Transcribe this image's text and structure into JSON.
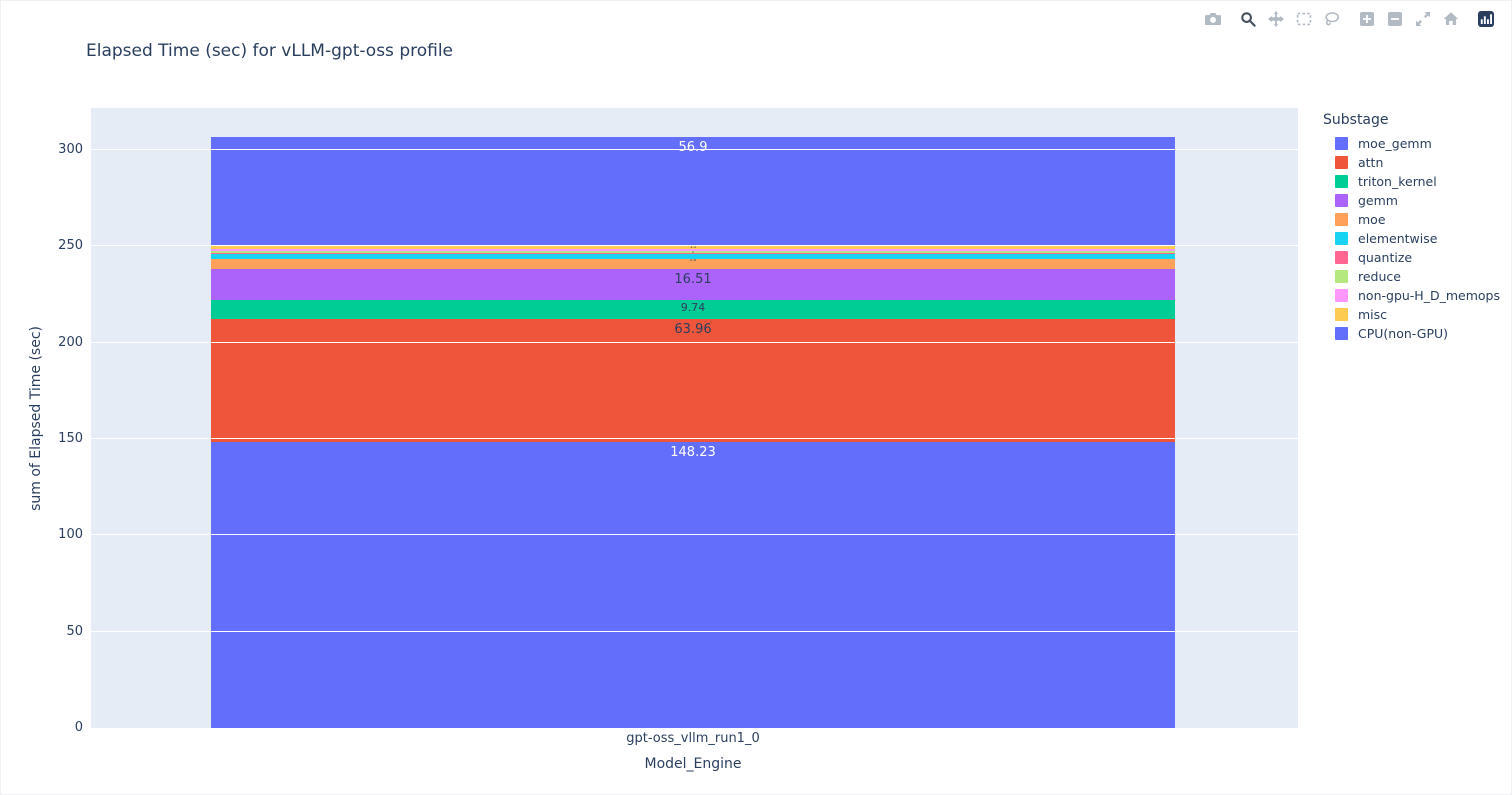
{
  "chart_data": {
    "type": "bar",
    "stacked": true,
    "title": "Elapsed Time (sec) for vLLM-gpt-oss profile",
    "xlabel": "Model_Engine",
    "ylabel": "sum of Elapsed Time (sec)",
    "legend_title": "Substage",
    "legend_position": "right",
    "grid": true,
    "categories": [
      "gpt-oss_vllm_run1_0"
    ],
    "yticks": [
      0,
      50,
      100,
      150,
      200,
      250,
      300
    ],
    "y_domain_max": 321.8,
    "plot_bg": "#e5ecf6",
    "text_color": "#2a3f5f",
    "series": [
      {
        "name": "moe_gemm",
        "color": "#636efa",
        "value": 148.23,
        "label": "148.23",
        "label_color": "#ffffff",
        "label_style": "big"
      },
      {
        "name": "attn",
        "color": "#ef553b",
        "value": 63.96,
        "label": "63.96",
        "label_color": "#2a3f5f",
        "label_style": "big"
      },
      {
        "name": "triton_kernel",
        "color": "#00cc96",
        "value": 9.74,
        "label": "9.74",
        "label_color": "#2a3f5f",
        "label_style": "small"
      },
      {
        "name": "gemm",
        "color": "#ab63fa",
        "value": 16.51,
        "label": "16.51",
        "label_color": "#2a3f5f",
        "label_style": "big"
      },
      {
        "name": "moe",
        "color": "#ffa15a",
        "value": 4.8,
        "label": "4.8",
        "label_color": "#2a3f5f",
        "label_style": "tiny"
      },
      {
        "name": "elementwise",
        "color": "#19d3f3",
        "value": 2.8,
        "label": "",
        "label_color": "#2a3f5f",
        "label_style": "tiny"
      },
      {
        "name": "quantize",
        "color": "#ff6692",
        "value": 0.4,
        "label": "",
        "label_color": "#2a3f5f",
        "label_style": "tiny"
      },
      {
        "name": "reduce",
        "color": "#b6e880",
        "value": 1.0,
        "label": "1",
        "label_color": "#2a3f5f",
        "label_style": "tiny"
      },
      {
        "name": "non-gpu-H_D_memops",
        "color": "#ff97ff",
        "value": 1.0,
        "label": "",
        "label_color": "#2a3f5f",
        "label_style": "tiny"
      },
      {
        "name": "misc",
        "color": "#fecb52",
        "value": 1.5,
        "label": "1.5",
        "label_color": "#2a3f5f",
        "label_style": "tiny"
      },
      {
        "name": "CPU(non-GPU)",
        "color": "#636efa",
        "value": 56.9,
        "label": "56.9",
        "label_color": "#ffffff",
        "label_style": "big"
      }
    ]
  },
  "modebar": {
    "active": "zoom",
    "groups": [
      [
        "download-plot"
      ],
      [
        "zoom",
        "pan",
        "box-select",
        "lasso-select"
      ],
      [
        "zoom-in",
        "zoom-out",
        "autoscale",
        "reset-axes"
      ],
      [
        "plotly-logo"
      ]
    ]
  }
}
